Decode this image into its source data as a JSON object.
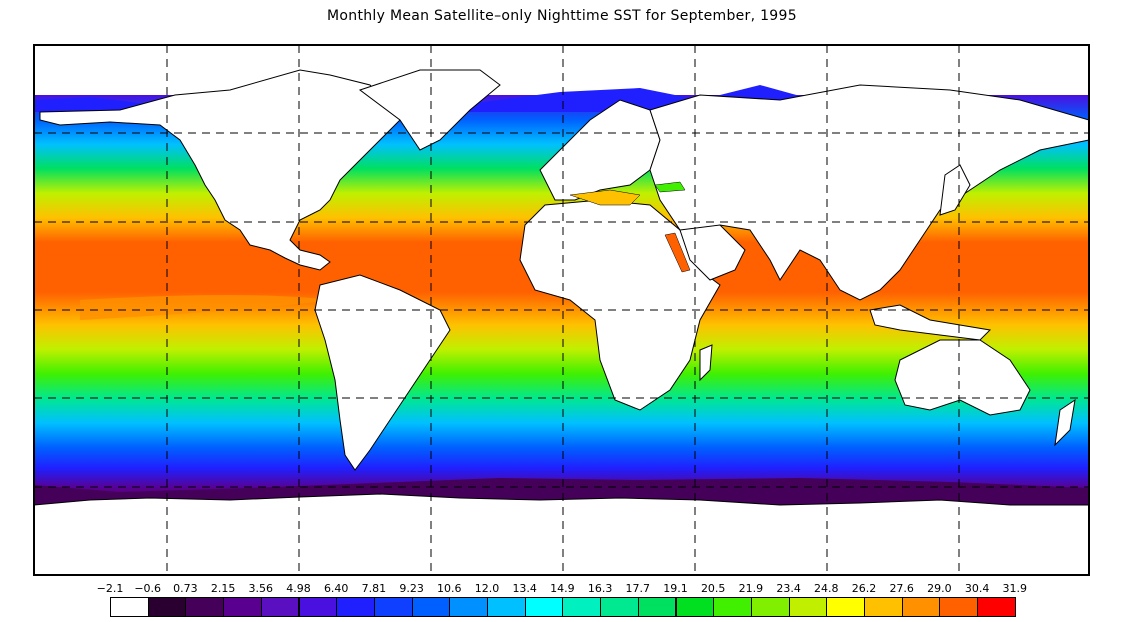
{
  "title": "Monthly Mean Satellite–only Nighttime SST for September, 1995",
  "colorbar": {
    "labels": [
      "−2.1",
      "−0.6",
      "0.73",
      "2.15",
      "3.56",
      "4.98",
      "6.40",
      "7.81",
      "9.23",
      "10.6",
      "12.0",
      "13.4",
      "14.9",
      "16.3",
      "17.7",
      "19.1",
      "20.5",
      "21.9",
      "23.4",
      "24.8",
      "26.2",
      "27.6",
      "29.0",
      "30.4",
      "31.9"
    ],
    "colors": [
      "#ffffff",
      "#2a0030",
      "#45005a",
      "#5a0090",
      "#5a10c0",
      "#4a10e0",
      "#2020ff",
      "#1040ff",
      "#0060ff",
      "#0090ff",
      "#00c0ff",
      "#00ffff",
      "#00f0c0",
      "#00e890",
      "#00e060",
      "#00e020",
      "#40f000",
      "#80f000",
      "#c0f000",
      "#ffff00",
      "#ffc000",
      "#ff9000",
      "#ff6000",
      "#ff0000"
    ]
  }
}
